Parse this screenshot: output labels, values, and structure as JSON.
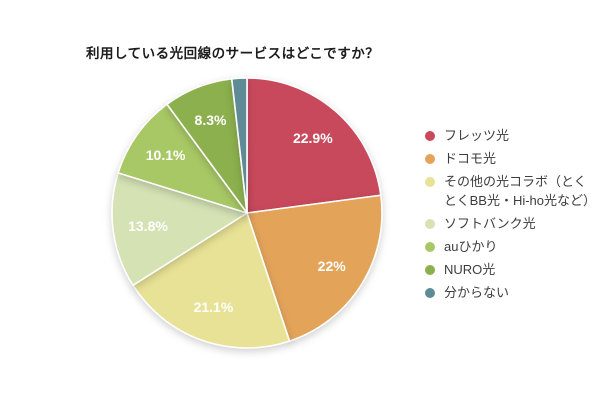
{
  "title": "利用している光回線のサービスはどこですか？",
  "chart_data": {
    "type": "pie",
    "title": "利用している光回線のサービスはどこですか？",
    "units": "percent",
    "start_angle_deg": 0,
    "direction": "clockwise",
    "legend_position": "right",
    "slice_border_color": "#ffffff",
    "label_color": "#ffffff",
    "slices": [
      {
        "label": "フレッツ光",
        "value": 22.9,
        "display": "22.9%",
        "color": "#c8495c"
      },
      {
        "label": "ドコモ光",
        "value": 22,
        "display": "22%",
        "color": "#e3a45a"
      },
      {
        "label": "その他の光コラボ（とくとくBB光・Hi-ho光など）",
        "value": 21.1,
        "display": "21.1%",
        "color": "#e8e296"
      },
      {
        "label": "ソフトバンク光",
        "value": 13.8,
        "display": "13.8%",
        "color": "#d4e2b4"
      },
      {
        "label": "auひかり",
        "value": 10.1,
        "display": "10.1%",
        "color": "#a8c865"
      },
      {
        "label": "NURO光",
        "value": 8.3,
        "display": "8.3%",
        "color": "#8cb04e"
      },
      {
        "label": "分からない",
        "value": 1.8,
        "display": "",
        "color": "#5e8b95"
      }
    ]
  }
}
